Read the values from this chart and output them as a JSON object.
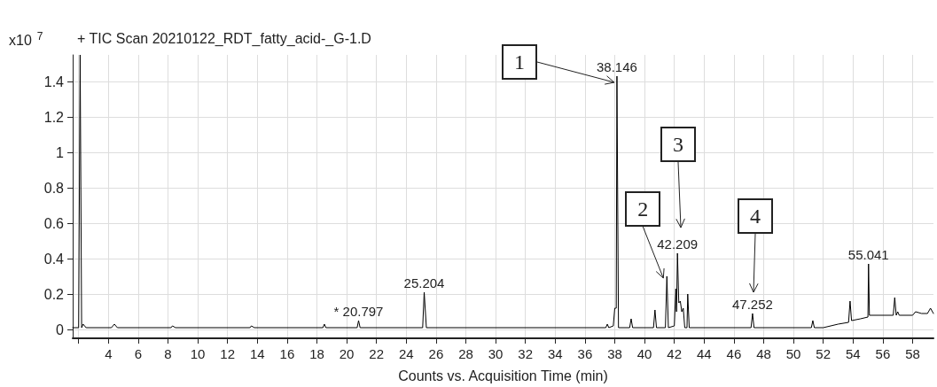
{
  "chart_data": {
    "type": "line",
    "title": "+ TIC Scan 20210122_RDT_fatty_acid-_G-1.D",
    "xlabel": "Counts vs. Acquisition Time (min)",
    "ylabel": "x10$^{7}$",
    "xlim": [
      1.6,
      59.4
    ],
    "ylim": [
      -0.05,
      1.55
    ],
    "xticks": [
      {
        "value": 2,
        "label": null
      },
      4,
      6,
      8,
      10,
      12,
      14,
      16,
      18,
      20,
      22,
      24,
      26,
      28,
      30,
      32,
      34,
      36,
      38,
      40,
      42,
      44,
      46,
      48,
      50,
      52,
      54,
      56,
      58
    ],
    "yticks": [
      0,
      0.2,
      0.4,
      0.6,
      0.8,
      1,
      1.2,
      1.4
    ],
    "grid": true,
    "marker": "none",
    "line_style": "solid",
    "annotations": [
      {
        "text": "* 20.797",
        "x": 20.797,
        "y": 0.05
      },
      {
        "text": "25.204",
        "x": 25.204,
        "y": 0.21
      },
      {
        "text": "38.146",
        "x": 38.146,
        "y": 1.43
      },
      {
        "text": "42.209",
        "x": 42.209,
        "y": 0.43
      },
      {
        "text": "47.252",
        "x": 47.252,
        "y": 0.09
      },
      {
        "text": "55.041",
        "x": 55.041,
        "y": 0.37
      },
      {
        "text": "1",
        "x": 38.146,
        "y": 1.43
      },
      {
        "text": "2",
        "x": 41.5,
        "y": 0.3
      },
      "3",
      "4"
    ],
    "series": [
      {
        "color": "#000000",
        "x": [
          1.6,
          2.0,
          2.1,
          2.2,
          2.3,
          2.5,
          4.2,
          4.4,
          4.6,
          8.2,
          8.3,
          8.5,
          13.5,
          13.6,
          13.8,
          18.4,
          18.5,
          18.6,
          20.7,
          20.797,
          20.9,
          25.1,
          25.204,
          25.35,
          37.4,
          37.5,
          37.6,
          37.9,
          38.0,
          38.1,
          38.146,
          38.25,
          39.0,
          39.1,
          39.2,
          40.6,
          40.7,
          40.8,
          41.4,
          41.5,
          41.6,
          42.0,
          42.1,
          42.15,
          42.209,
          42.3,
          42.4,
          42.5,
          42.6,
          42.7,
          42.85,
          42.9,
          43.0,
          47.15,
          47.252,
          47.35,
          51.2,
          51.3,
          51.4,
          52.0,
          53.0,
          53.7,
          53.8,
          53.9,
          54.5,
          55.0,
          55.041,
          55.1,
          56.7,
          56.8,
          56.9,
          57.0,
          57.1,
          58.0,
          58.2,
          58.6,
          59.0,
          59.2,
          59.4
        ],
        "values": [
          0.01,
          0.01,
          1.55,
          0.01,
          0.03,
          0.01,
          0.01,
          0.03,
          0.01,
          0.01,
          0.02,
          0.01,
          0.01,
          0.02,
          0.01,
          0.01,
          0.03,
          0.01,
          0.01,
          0.05,
          0.01,
          0.01,
          0.21,
          0.01,
          0.01,
          0.03,
          0.01,
          0.02,
          0.12,
          0.12,
          1.43,
          0.01,
          0.01,
          0.06,
          0.01,
          0.01,
          0.11,
          0.01,
          0.01,
          0.3,
          0.01,
          0.02,
          0.23,
          0.1,
          0.43,
          0.15,
          0.16,
          0.1,
          0.12,
          0.01,
          0.01,
          0.2,
          0.01,
          0.01,
          0.09,
          0.01,
          0.01,
          0.05,
          0.01,
          0.01,
          0.03,
          0.04,
          0.16,
          0.05,
          0.06,
          0.07,
          0.37,
          0.08,
          0.08,
          0.18,
          0.08,
          0.1,
          0.08,
          0.08,
          0.1,
          0.09,
          0.09,
          0.12,
          0.09
        ]
      }
    ]
  }
}
